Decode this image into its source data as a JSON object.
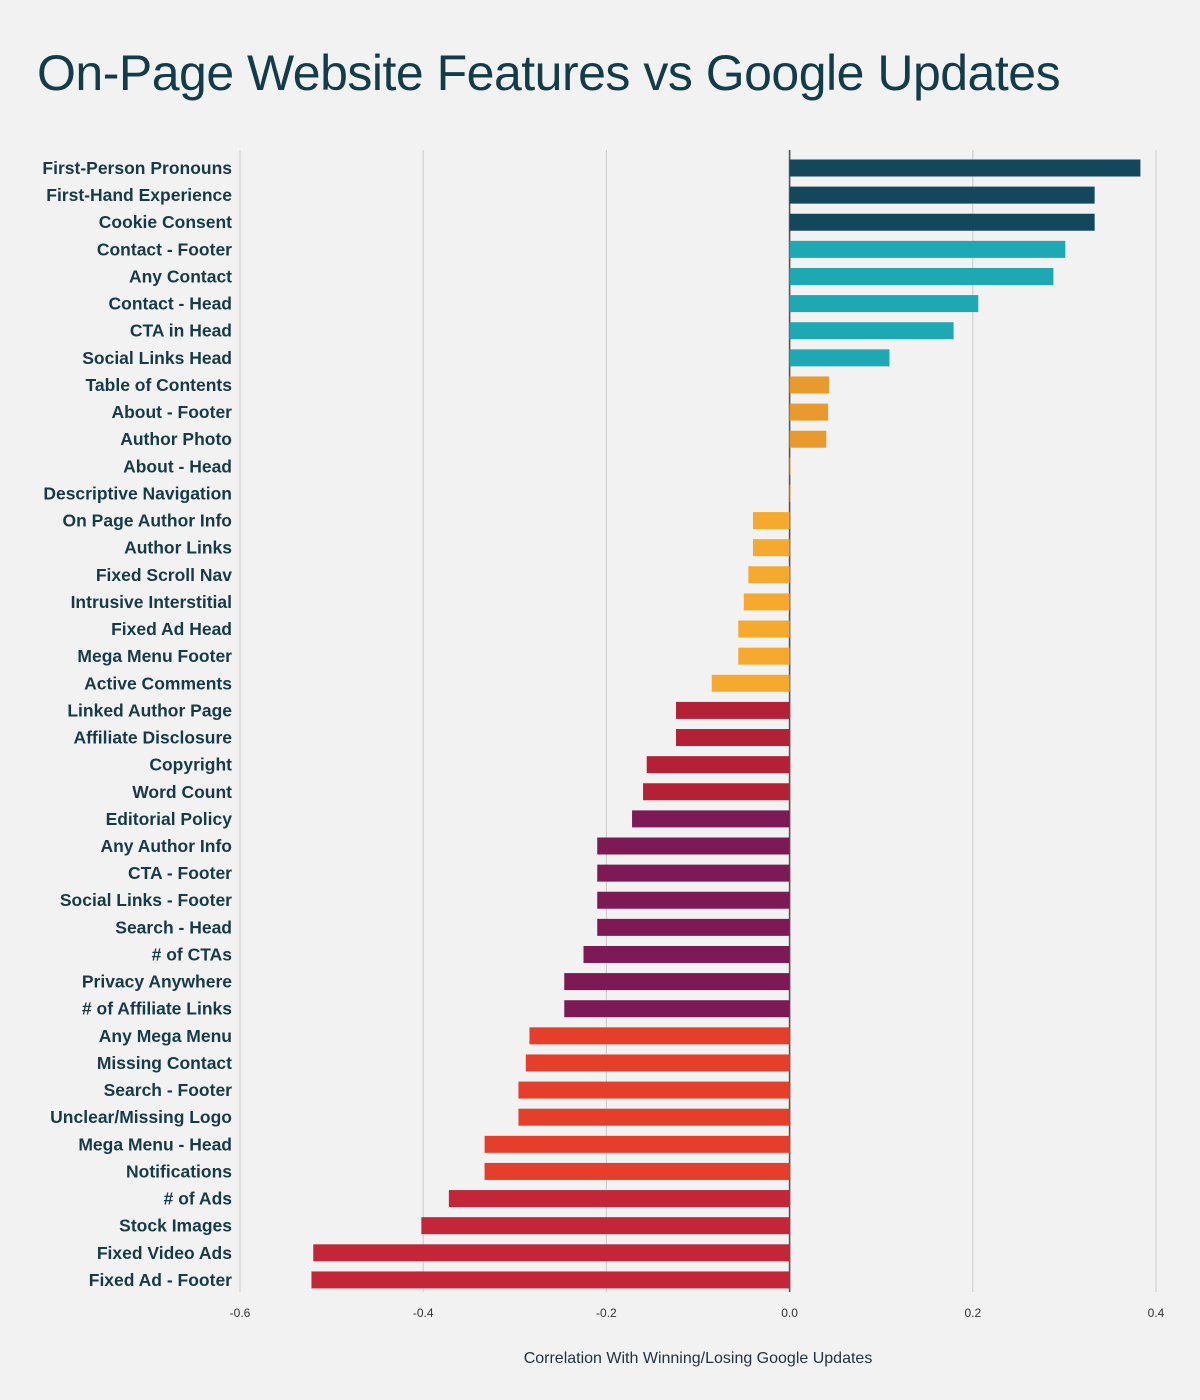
{
  "chart_data": {
    "type": "bar",
    "orientation": "horizontal",
    "title": "On-Page Website Features vs Google Updates",
    "xlabel": "Correlation With Winning/Losing Google Updates",
    "ylabel": "",
    "xlim": [
      -0.6,
      0.4
    ],
    "xticks": [
      -0.6,
      -0.4,
      -0.2,
      0.0,
      0.2,
      0.4
    ],
    "xtick_labels": [
      "-0.6",
      "-0.4",
      "-0.2",
      "0.0",
      "0.2",
      "0.4"
    ],
    "grid": "vertical",
    "categories": [
      "First-Person Pronouns",
      "First-Hand Experience",
      "Cookie Consent",
      "Contact - Footer",
      "Any Contact",
      "Contact - Head",
      "CTA in Head",
      "Social Links Head",
      "Table of Contents",
      "About - Footer",
      "Author Photo",
      "About - Head",
      "Descriptive Navigation",
      "On Page Author Info",
      "Author Links",
      "Fixed Scroll Nav",
      "Intrusive Interstitial",
      "Fixed Ad Head",
      "Mega Menu Footer",
      "Active Comments",
      "Linked Author Page",
      "Affiliate Disclosure",
      "Copyright",
      "Word Count",
      "Editorial Policy",
      "Any Author Info",
      "CTA - Footer",
      "Social Links - Footer",
      "Search - Head",
      "# of CTAs",
      "Privacy Anywhere",
      "# of Affiliate Links",
      "Any Mega Menu",
      "Missing Contact",
      "Search - Footer",
      "Unclear/Missing Logo",
      "Mega Menu - Head",
      "Notifications",
      "# of Ads",
      "Stock Images",
      "Fixed Video Ads",
      "Fixed Ad - Footer"
    ],
    "values": [
      0.383,
      0.333,
      0.333,
      0.301,
      0.288,
      0.206,
      0.179,
      0.109,
      0.043,
      0.042,
      0.04,
      0.001,
      0.001,
      -0.04,
      -0.04,
      -0.045,
      -0.05,
      -0.056,
      -0.056,
      -0.085,
      -0.124,
      -0.124,
      -0.156,
      -0.16,
      -0.172,
      -0.21,
      -0.21,
      -0.21,
      -0.21,
      -0.225,
      -0.246,
      -0.246,
      -0.284,
      -0.288,
      -0.296,
      -0.296,
      -0.333,
      -0.333,
      -0.372,
      -0.402,
      -0.52,
      -0.522
    ],
    "colors": [
      "#13475c",
      "#13475c",
      "#13475c",
      "#1ea8b3",
      "#1ea8b3",
      "#1ea8b3",
      "#1ea8b3",
      "#1ea8b3",
      "#e89a2e",
      "#e89a2e",
      "#e89a2e",
      "#e89a2e",
      "#e89a2e",
      "#f5a92f",
      "#f5a92f",
      "#f5a92f",
      "#f5a92f",
      "#f5a92f",
      "#f5a92f",
      "#f5a92f",
      "#b42035",
      "#b42035",
      "#b42035",
      "#b42035",
      "#7d1a55",
      "#7d1a55",
      "#7d1a55",
      "#7d1a55",
      "#7d1a55",
      "#7d1a55",
      "#7d1a55",
      "#7d1a55",
      "#e53f2b",
      "#e53f2b",
      "#e53f2b",
      "#e53f2b",
      "#e53f2b",
      "#e53f2b",
      "#c42639",
      "#c42639",
      "#c42639",
      "#c42639"
    ]
  }
}
